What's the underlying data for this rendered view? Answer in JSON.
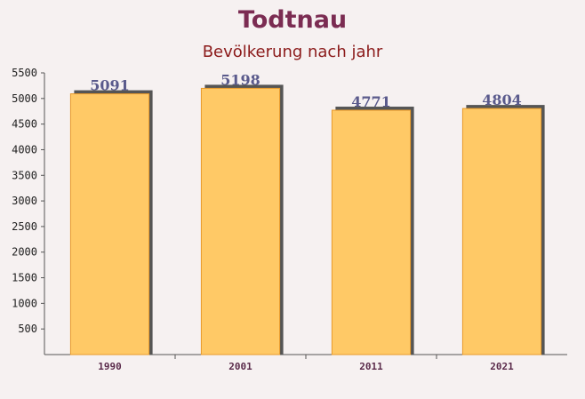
{
  "chart_data": {
    "type": "bar",
    "title": "Todtnau",
    "subtitle": "Bevölkerung nach jahr",
    "categories": [
      "1990",
      "2001",
      "2011",
      "2021"
    ],
    "values": [
      5091,
      5198,
      4771,
      4804
    ],
    "color": "#ffc966",
    "ylim": [
      0,
      5500
    ],
    "yticks": [
      500,
      1000,
      1500,
      2000,
      2500,
      3000,
      3500,
      4000,
      4500,
      5000,
      5500
    ],
    "grid": false
  }
}
